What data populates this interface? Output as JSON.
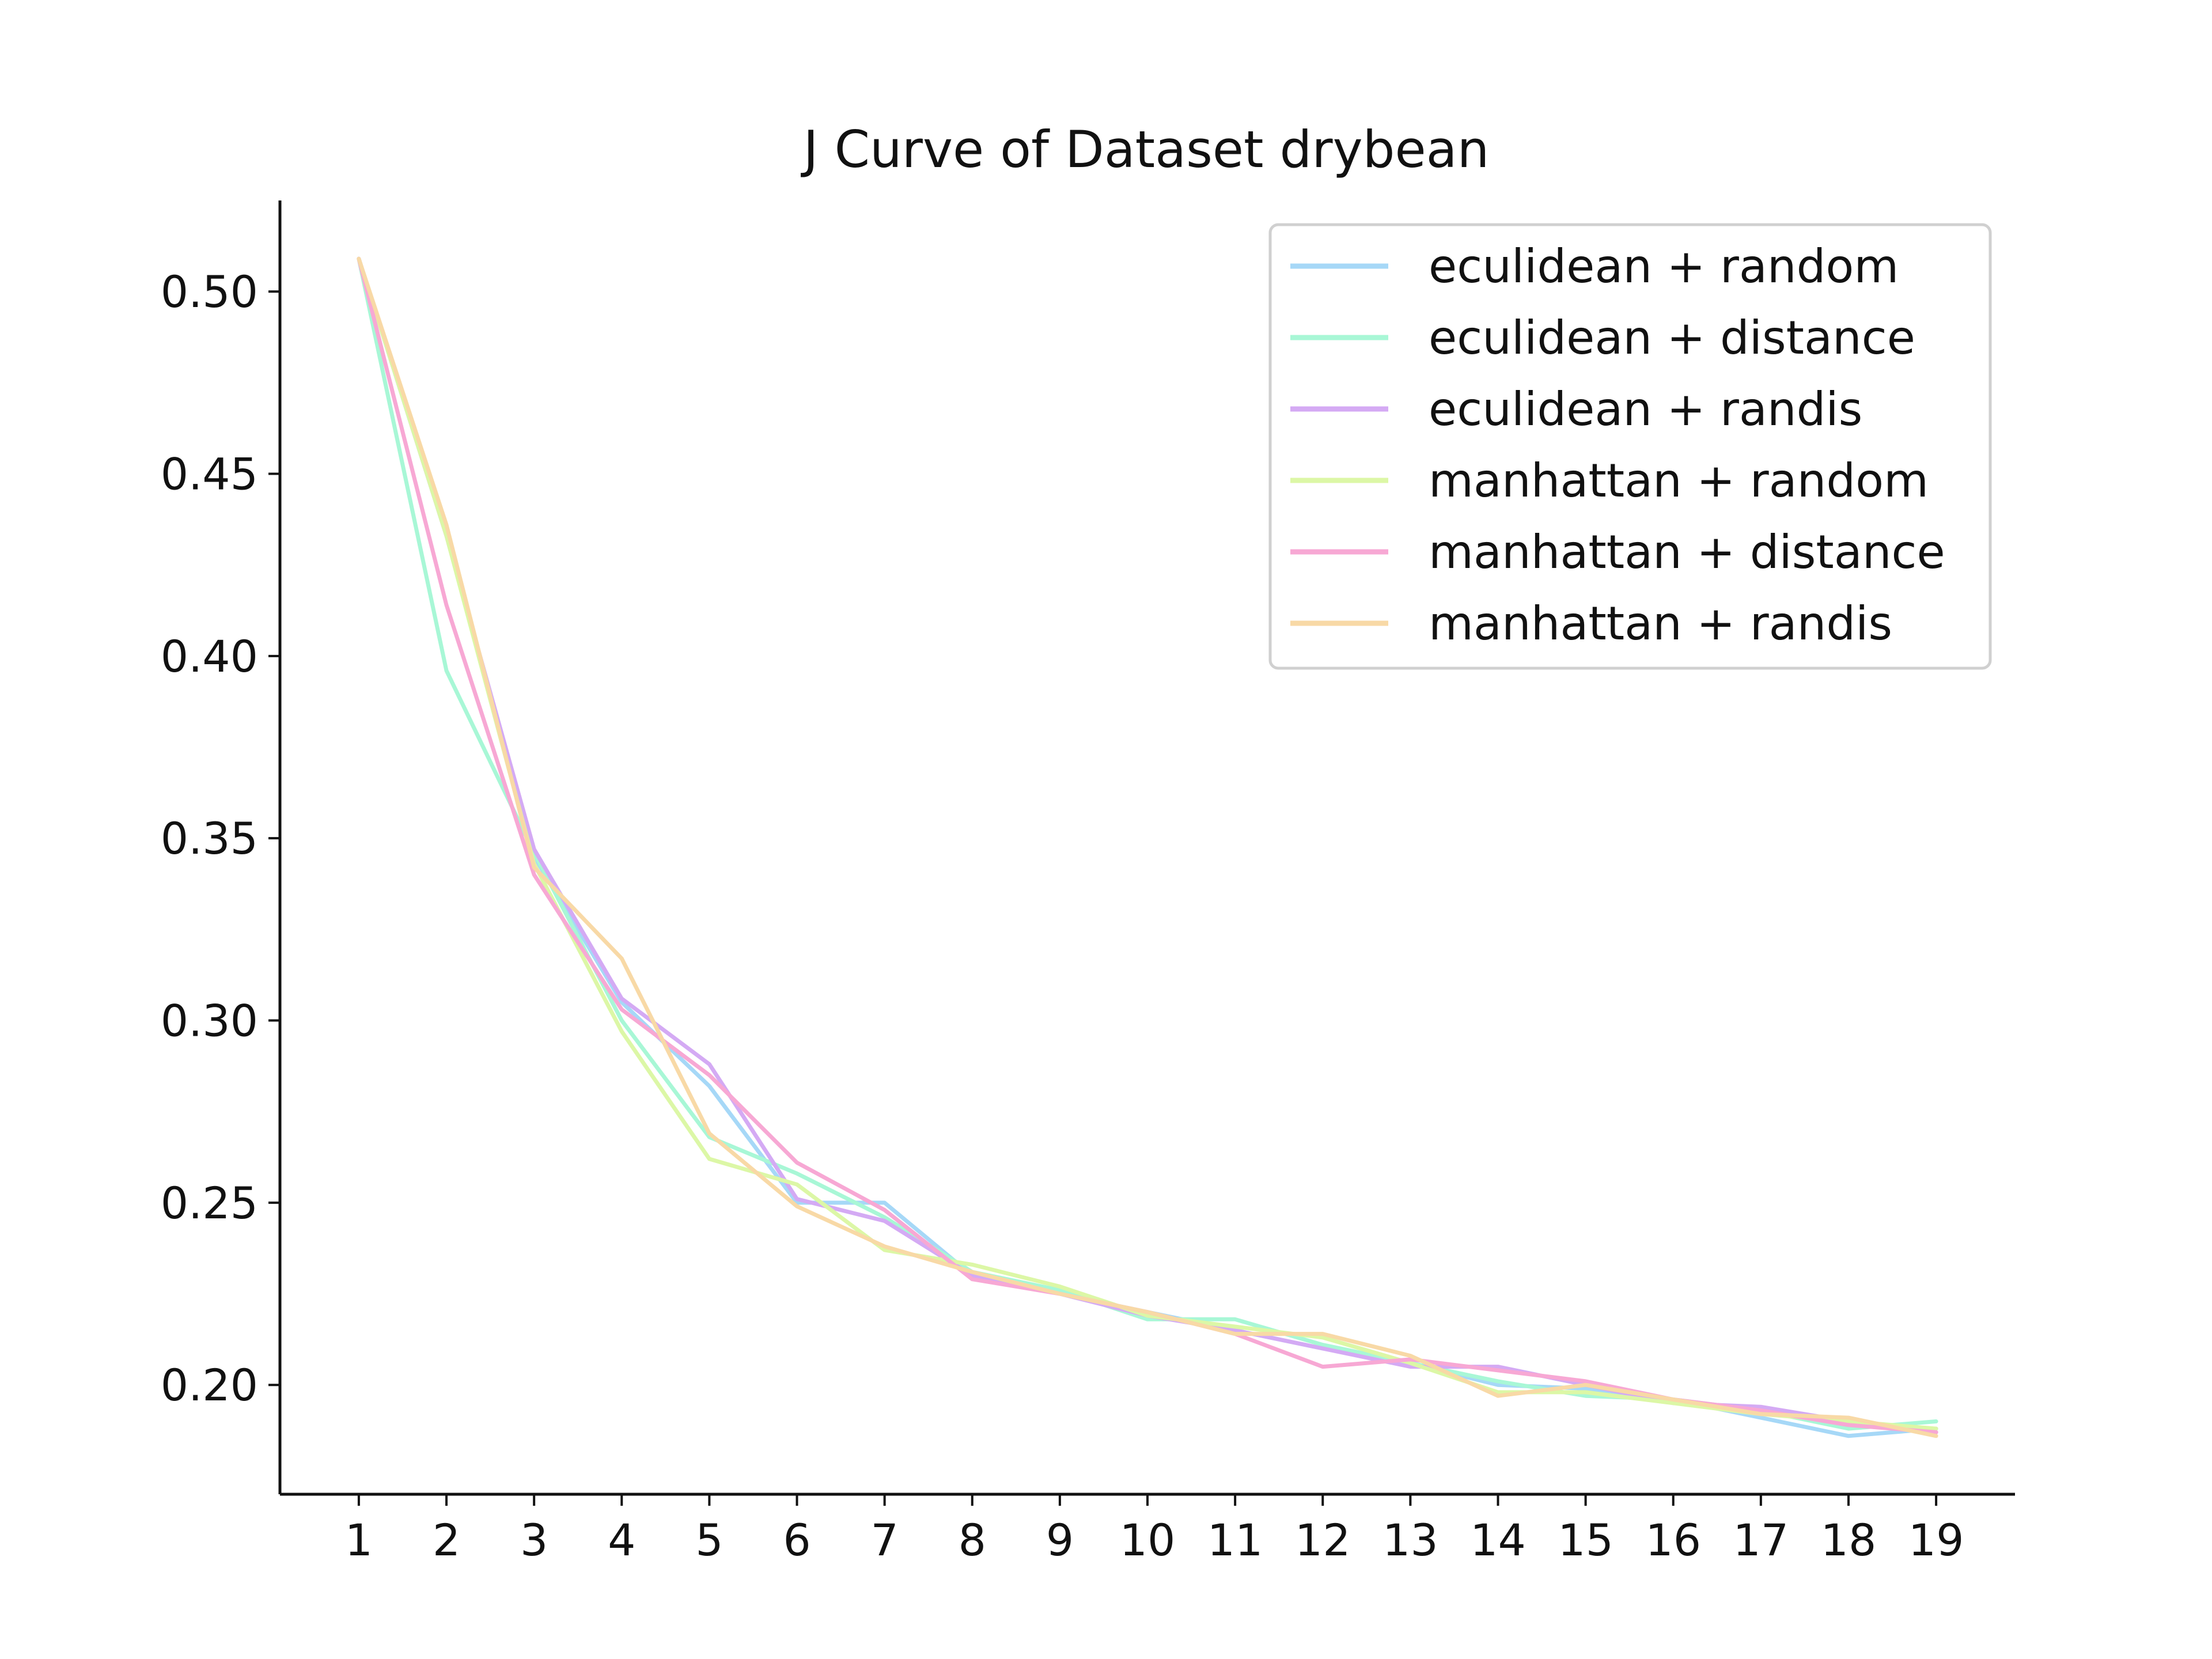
{
  "chart_data": {
    "type": "line",
    "title": "J Curve of Dataset drybean",
    "xlabel": "",
    "ylabel": "",
    "x": [
      1,
      2,
      3,
      4,
      5,
      6,
      7,
      8,
      9,
      10,
      11,
      12,
      13,
      14,
      15,
      16,
      17,
      18,
      19
    ],
    "xticks": [
      "1",
      "2",
      "3",
      "4",
      "5",
      "6",
      "7",
      "8",
      "9",
      "10",
      "11",
      "12",
      "13",
      "14",
      "15",
      "16",
      "17",
      "18",
      "19"
    ],
    "yticks": [
      "0.20",
      "0.25",
      "0.30",
      "0.35",
      "0.40",
      "0.45",
      "0.50"
    ],
    "ytick_values": [
      0.2,
      0.25,
      0.3,
      0.35,
      0.4,
      0.45,
      0.5
    ],
    "xlim": [
      0.1,
      19.9
    ],
    "ylim": [
      0.17,
      0.525
    ],
    "grid": false,
    "legend_position": "top-right",
    "series": [
      {
        "name": "eculidean + random",
        "color": "#a6d8f7",
        "values": [
          0.509,
          0.433,
          0.345,
          0.305,
          0.282,
          0.25,
          0.25,
          0.23,
          0.225,
          0.22,
          0.215,
          0.21,
          0.206,
          0.2,
          0.199,
          0.196,
          0.191,
          0.186,
          0.188
        ]
      },
      {
        "name": "eculidean + distance",
        "color": "#a8f7d6",
        "values": [
          0.509,
          0.396,
          0.346,
          0.3,
          0.268,
          0.258,
          0.246,
          0.231,
          0.226,
          0.218,
          0.218,
          0.211,
          0.206,
          0.201,
          0.197,
          0.196,
          0.193,
          0.188,
          0.19
        ]
      },
      {
        "name": "eculidean + randis",
        "color": "#d4aaf4",
        "values": [
          0.509,
          0.433,
          0.347,
          0.306,
          0.288,
          0.251,
          0.245,
          0.23,
          0.225,
          0.219,
          0.215,
          0.21,
          0.205,
          0.205,
          0.2,
          0.195,
          0.194,
          0.19,
          0.187
        ]
      },
      {
        "name": "manhattan + random",
        "color": "#dcf7a6",
        "values": [
          0.509,
          0.433,
          0.343,
          0.297,
          0.262,
          0.255,
          0.237,
          0.233,
          0.227,
          0.219,
          0.216,
          0.213,
          0.206,
          0.198,
          0.198,
          0.195,
          0.192,
          0.19,
          0.188
        ]
      },
      {
        "name": "manhattan + distance",
        "color": "#f7a8d4",
        "values": [
          0.509,
          0.414,
          0.34,
          0.303,
          0.285,
          0.261,
          0.248,
          0.229,
          0.225,
          0.22,
          0.214,
          0.205,
          0.207,
          0.204,
          0.201,
          0.196,
          0.193,
          0.189,
          0.187
        ]
      },
      {
        "name": "manhattan + randis",
        "color": "#f8d9a6",
        "values": [
          0.509,
          0.436,
          0.342,
          0.317,
          0.269,
          0.249,
          0.238,
          0.231,
          0.225,
          0.22,
          0.214,
          0.214,
          0.208,
          0.197,
          0.2,
          0.196,
          0.192,
          0.191,
          0.186
        ]
      }
    ]
  }
}
